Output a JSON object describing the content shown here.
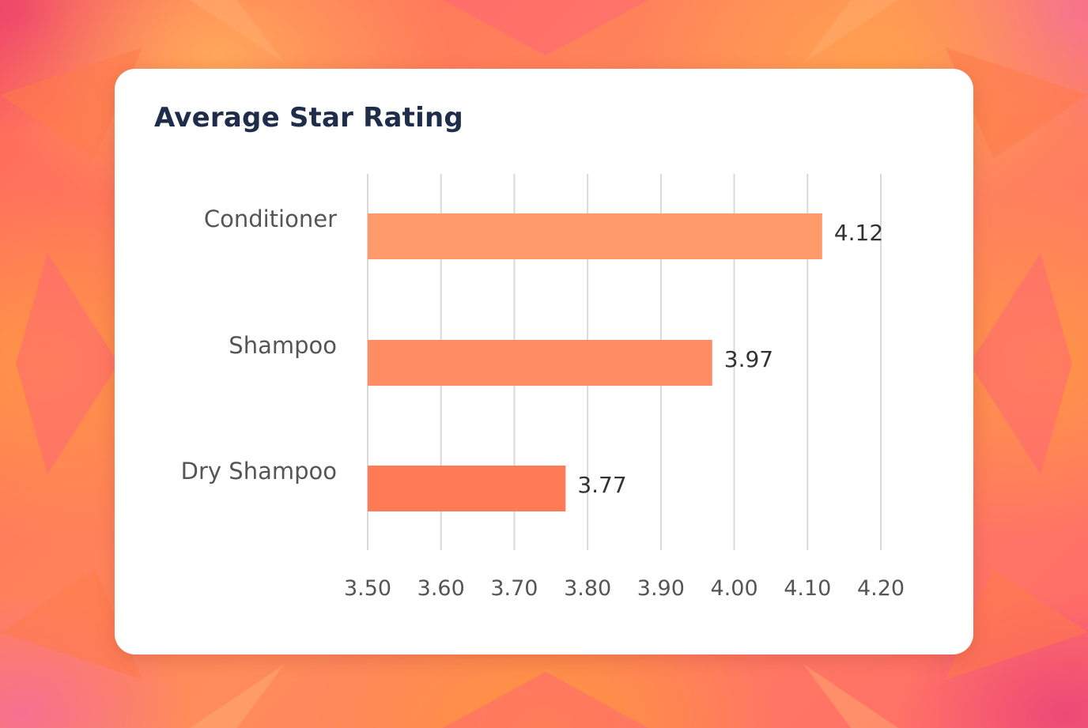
{
  "chart_data": {
    "type": "bar",
    "orientation": "horizontal",
    "title": "Average Star Rating",
    "categories": [
      "Conditioner",
      "Shampoo",
      "Dry Shampoo"
    ],
    "values": [
      4.12,
      3.97,
      3.77
    ],
    "value_labels": [
      "4.12",
      "3.97",
      "3.77"
    ],
    "xlim": [
      3.5,
      4.2
    ],
    "xticks": [
      3.5,
      3.6,
      3.7,
      3.8,
      3.9,
      4.0,
      4.1,
      4.2
    ],
    "xtick_labels": [
      "3.50",
      "3.60",
      "3.70",
      "3.80",
      "3.90",
      "4.00",
      "4.10",
      "4.20"
    ],
    "xlabel": "",
    "ylabel": "",
    "grid": "vertical",
    "legend": "none",
    "bar_colors": [
      "#ff9b6a",
      "#ff8c62",
      "#ff7b58"
    ]
  },
  "colors": {
    "title": "#1f2d4a",
    "label": "#555555",
    "grid": "#d9d9d9",
    "card": "#ffffff"
  }
}
